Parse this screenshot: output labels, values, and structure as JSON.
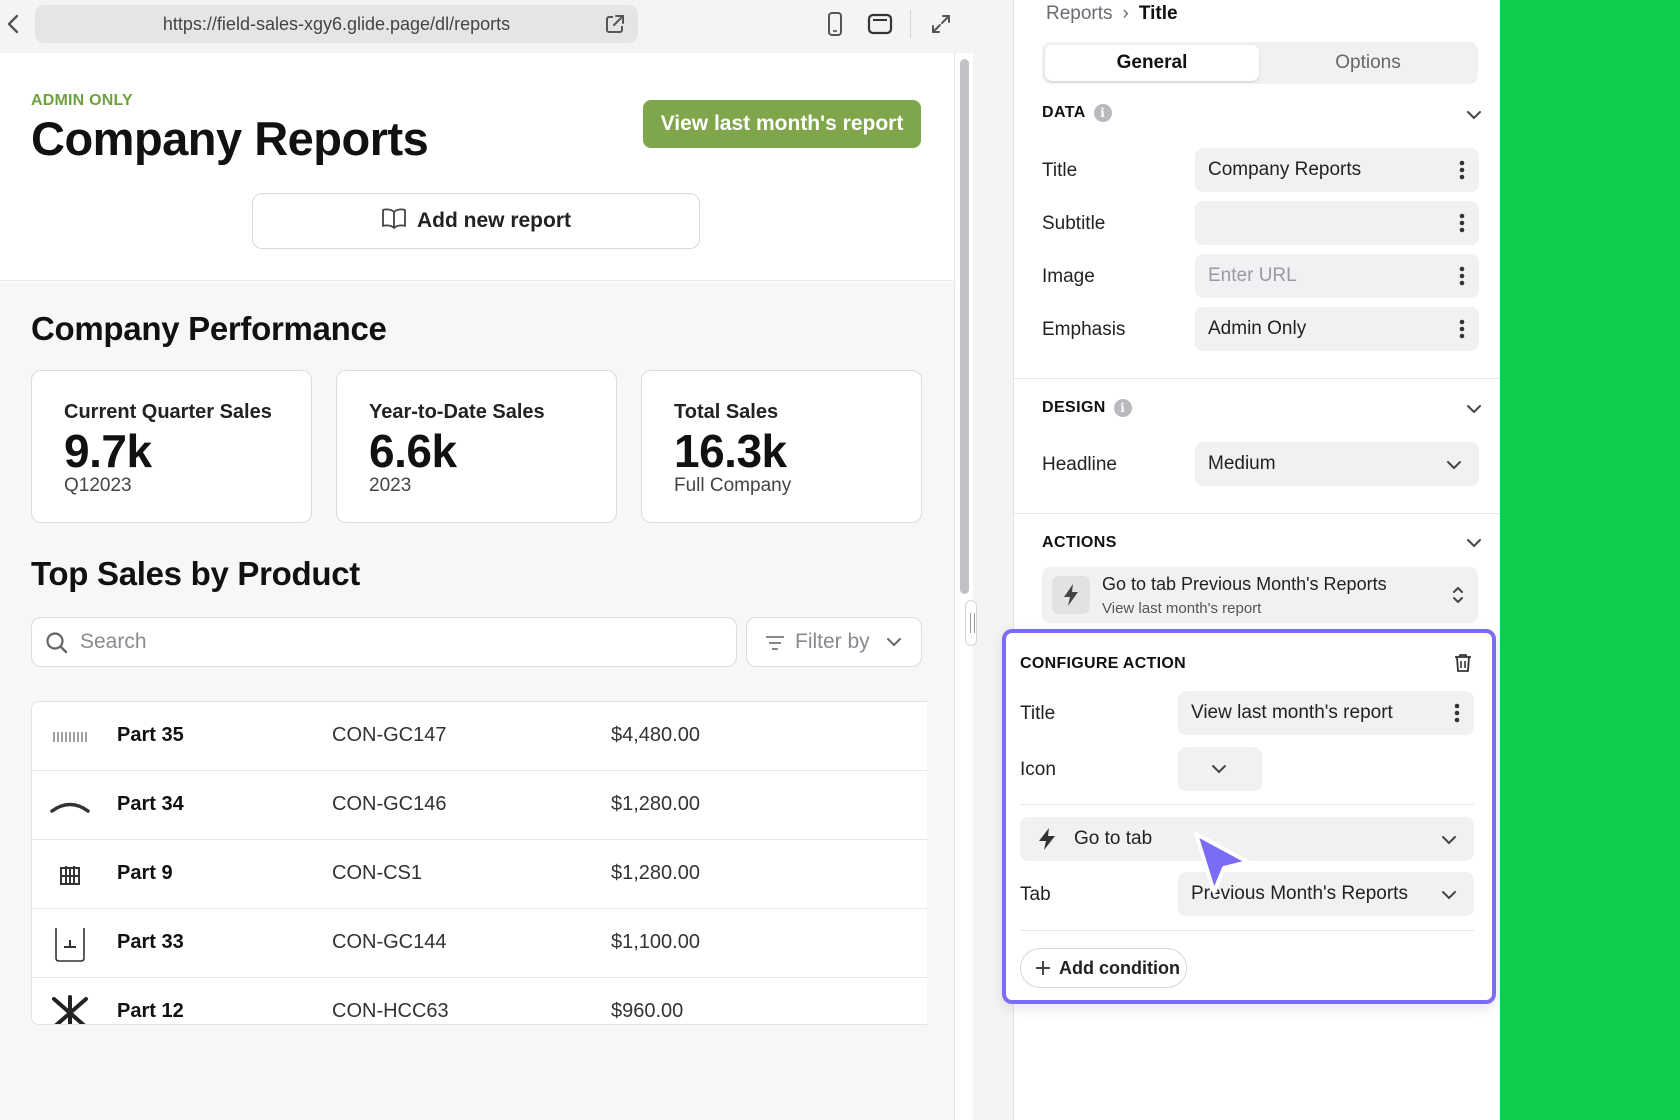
{
  "browser": {
    "url": "https://field-sales-xgy6.glide.page/dl/reports"
  },
  "hero": {
    "emphasis": "ADMIN ONLY",
    "title": "Company Reports",
    "primary_button": "View last month's report",
    "add_button": "Add new report"
  },
  "performance": {
    "section_title": "Company Performance",
    "cards": [
      {
        "label": "Current Quarter Sales",
        "value": "9.7k",
        "sub": "Q12023"
      },
      {
        "label": "Year-to-Date Sales",
        "value": "6.6k",
        "sub": "2023"
      },
      {
        "label": "Total Sales",
        "value": "16.3k",
        "sub": "Full Company"
      }
    ]
  },
  "products": {
    "section_title": "Top Sales by Product",
    "search_placeholder": "Search",
    "filter_label": "Filter by",
    "rows": [
      {
        "name": "Part 35",
        "code": "CON-GC147",
        "price": "$4,480.00",
        "icon": "comb-part-icon"
      },
      {
        "name": "Part 34",
        "code": "CON-GC146",
        "price": "$1,280.00",
        "icon": "arc-part-icon"
      },
      {
        "name": "Part 9",
        "code": "CON-CS1",
        "price": "$1,280.00",
        "icon": "rack-part-icon"
      },
      {
        "name": "Part 33",
        "code": "CON-GC144",
        "price": "$1,100.00",
        "icon": "box-part-icon"
      },
      {
        "name": "Part 12",
        "code": "CON-HCC63",
        "price": "$960.00",
        "icon": "cross-part-icon"
      }
    ]
  },
  "panel": {
    "breadcrumb": {
      "parent": "Reports",
      "separator": "›",
      "current": "Title"
    },
    "tabs": {
      "general": "General",
      "options": "Options"
    },
    "data_section": {
      "heading": "DATA",
      "fields": {
        "title": {
          "label": "Title",
          "value": "Company Reports"
        },
        "subtitle": {
          "label": "Subtitle",
          "value": ""
        },
        "image": {
          "label": "Image",
          "placeholder": "Enter URL"
        },
        "emphasis": {
          "label": "Emphasis",
          "value": "Admin Only"
        }
      }
    },
    "design_section": {
      "heading": "DESIGN",
      "headline": {
        "label": "Headline",
        "value": "Medium"
      }
    },
    "actions_section": {
      "heading": "ACTIONS",
      "item_title": "Go to tab Previous Month's Reports",
      "item_subtitle": "View last month's report"
    },
    "configure": {
      "heading": "CONFIGURE ACTION",
      "title": {
        "label": "Title",
        "value": "View last month's report"
      },
      "icon": {
        "label": "Icon"
      },
      "action_type": "Go to tab",
      "tab": {
        "label": "Tab",
        "value": "Previous Month's Reports"
      },
      "add_condition": "Add condition"
    }
  },
  "colors": {
    "accent_green": "#7fa64a",
    "emphasis_green": "#6fa03e",
    "highlight_purple": "#7b6cf6",
    "side_bar_green": "#0fcd4f"
  }
}
